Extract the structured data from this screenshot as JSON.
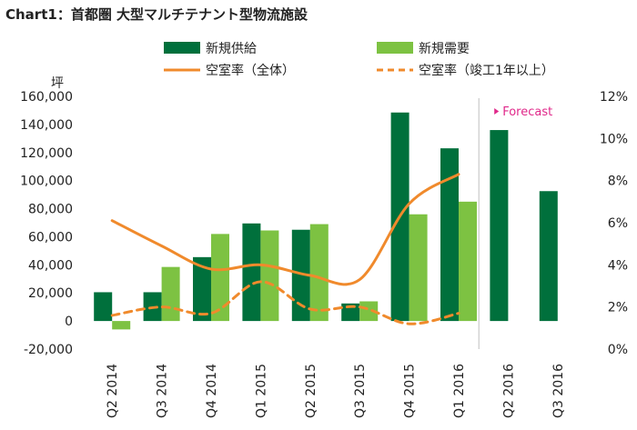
{
  "chart_data": {
    "type": "bar",
    "title": "Chart1：首都圏 大型マルチテナント型物流施設",
    "ylabel": "坪",
    "y2label": "",
    "categories": [
      "Q2 2014",
      "Q3 2014",
      "Q4 2014",
      "Q1 2015",
      "Q2 2015",
      "Q3 2015",
      "Q4 2015",
      "Q1 2016",
      "Q2 2016",
      "Q3 2016"
    ],
    "ylim": [
      -20000,
      160000
    ],
    "yticks": [
      -20000,
      0,
      20000,
      40000,
      60000,
      80000,
      100000,
      120000,
      140000,
      160000
    ],
    "ytick_labels": [
      "-20,000",
      "0",
      "20,000",
      "40,000",
      "60,000",
      "80,000",
      "100,000",
      "120,000",
      "140,000",
      "160,000"
    ],
    "y2lim": [
      0,
      12
    ],
    "y2ticks": [
      0,
      2,
      4,
      6,
      8,
      10,
      12
    ],
    "y2tick_labels": [
      "0%",
      "2%",
      "4%",
      "6%",
      "8%",
      "10%",
      "12%"
    ],
    "series": [
      {
        "name": "新規供給",
        "kind": "bar",
        "axis": "left",
        "color": "#00703c",
        "values": [
          20500,
          20500,
          45500,
          69500,
          65000,
          12500,
          148500,
          123000,
          136000,
          92500
        ]
      },
      {
        "name": "新規需要",
        "kind": "bar",
        "axis": "left",
        "color": "#7dc242",
        "values": [
          -6000,
          38500,
          62000,
          64500,
          69000,
          14000,
          76000,
          85000,
          null,
          null
        ]
      },
      {
        "name": "空室率（全体）",
        "kind": "line",
        "style": "solid",
        "axis": "right",
        "color": "#f08a2c",
        "values": [
          6.1,
          4.9,
          3.8,
          4.0,
          3.5,
          3.3,
          6.9,
          8.3,
          null,
          null
        ]
      },
      {
        "name": "空室率（竣工1年以上）",
        "kind": "line",
        "style": "dashed",
        "axis": "right",
        "color": "#f08a2c",
        "values": [
          1.6,
          2.0,
          1.7,
          3.2,
          1.9,
          2.0,
          1.2,
          1.7,
          null,
          null
        ]
      }
    ],
    "forecast_label": "Forecast",
    "forecast_from_index": 8,
    "forecast_color": "#e0288a",
    "legend_position": "top",
    "grid": false
  }
}
